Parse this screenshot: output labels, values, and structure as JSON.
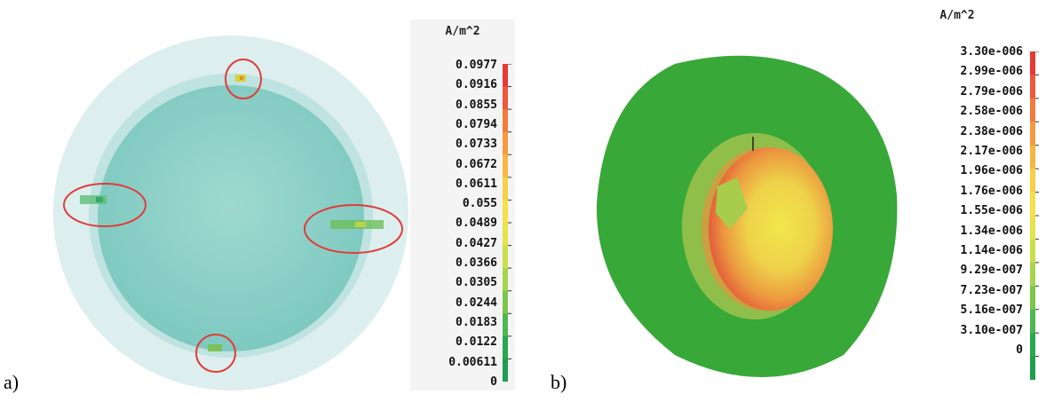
{
  "panels": [
    {
      "label": "a)",
      "legend": {
        "unit": "A/m^2",
        "ticks": [
          "0.0977",
          "0.0916",
          "0.0855",
          "0.0794",
          "0.0733",
          "0.0672",
          "0.0611",
          "0.055",
          "0.0489",
          "0.0427",
          "0.0366",
          "0.0305",
          "0.0244",
          "0.0183",
          "0.0122",
          "0.00611",
          "0"
        ]
      }
    },
    {
      "label": "b)",
      "legend": {
        "unit": "A/m^2",
        "ticks": [
          "3.30e-006",
          "2.99e-006",
          "2.79e-006",
          "2.58e-006",
          "2.38e-006",
          "2.17e-006",
          "1.96e-006",
          "1.76e-006",
          "1.55e-006",
          "1.34e-006",
          "1.14e-006",
          "9.29e-007",
          "7.23e-007",
          "5.16e-007",
          "3.10e-007",
          "0"
        ]
      }
    }
  ],
  "colors": {
    "scale": [
      "#e53a36",
      "#ec5a3a",
      "#f27a3d",
      "#f59a40",
      "#f8b643",
      "#f8cf46",
      "#f5e04a",
      "#e5e44a",
      "#c9df4b",
      "#a6d44c",
      "#7dc64e",
      "#4fb850",
      "#2aa84f",
      "#1f9e4e"
    ],
    "outer_disc": "#d9ecec",
    "inner_disc": "#8cd1c8",
    "annotation_circle": "#e03c3c",
    "body_green": "#36a83a"
  }
}
